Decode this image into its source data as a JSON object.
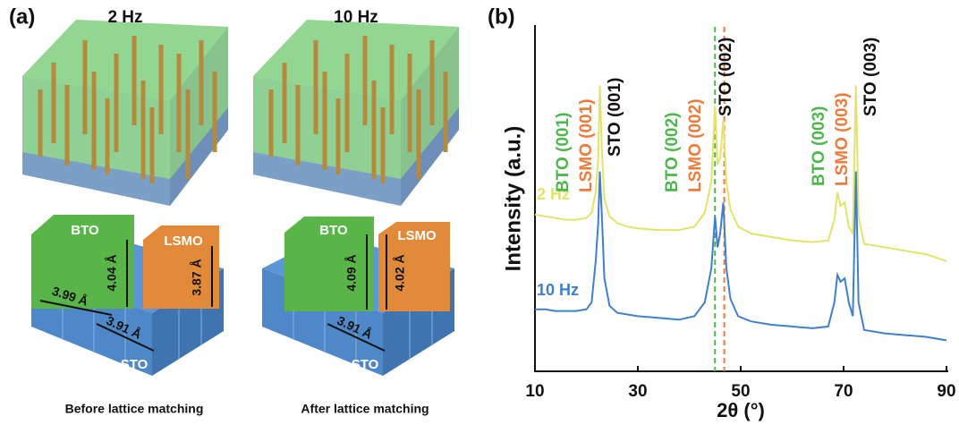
{
  "panel_a": {
    "label": "(a)",
    "samples": [
      {
        "title": "2 Hz",
        "bto": "BTO",
        "lsmo": "LSMO",
        "bto_height": "4.04 Å",
        "lsmo_height": "3.87 Å",
        "bto_width": "3.99 Å",
        "sto_width": "3.91 Å",
        "substrate": "STO",
        "caption": "Before lattice matching"
      },
      {
        "title": "10 Hz",
        "bto": "BTO",
        "lsmo": "LSMO",
        "bto_height": "4.09 Å",
        "lsmo_height": "4.02 Å",
        "sto_width": "3.91 Å",
        "substrate": "STO",
        "caption": "After lattice matching"
      }
    ]
  },
  "chart_data": {
    "type": "line",
    "panel_label": "(b)",
    "y_label": "Intensity (a.u.)",
    "x_label": "2θ (°)",
    "x": [
      10,
      12,
      14,
      16,
      18,
      20,
      21,
      21.8,
      22.3,
      22.6,
      23,
      23.5,
      24.5,
      26,
      28,
      30,
      34,
      38,
      41,
      43,
      44.3,
      45.0,
      45.5,
      46.0,
      46.6,
      47.2,
      48,
      49.5,
      52,
      56,
      60,
      64,
      67,
      68.2,
      68.8,
      69.4,
      70.2,
      71,
      71.8,
      72.4,
      72.9,
      74,
      78,
      82,
      86,
      90
    ],
    "series": [
      {
        "name": "2 Hz",
        "color": "#e3e36a",
        "values": [
          45.5,
          45,
          44.5,
          44,
          44,
          44.5,
          46,
          52,
          62,
          83,
          64,
          50,
          45,
          43,
          42,
          41.5,
          41,
          41,
          42,
          46,
          55,
          77,
          60,
          62,
          73,
          55,
          47,
          42,
          40,
          39,
          38,
          37.5,
          38,
          44,
          52,
          48,
          49,
          42,
          40,
          83,
          45,
          37,
          36,
          35,
          34,
          32
        ]
      },
      {
        "name": "10 Hz",
        "color": "#3f7fcf",
        "values": [
          18,
          18,
          17.5,
          17.5,
          17.5,
          18,
          20,
          32,
          43,
          58,
          45,
          27,
          19,
          17,
          16.5,
          16,
          15.5,
          15,
          16,
          20,
          30,
          45,
          36,
          40,
          49,
          30,
          21,
          16,
          14.5,
          13.5,
          13,
          12.5,
          13,
          20,
          28,
          26,
          27,
          20,
          16,
          58,
          20,
          12,
          11,
          10.5,
          10,
          9
        ]
      }
    ],
    "xlim": [
      10,
      90
    ],
    "xticks": [
      10,
      30,
      50,
      70,
      90
    ],
    "ylim": [
      0,
      100
    ],
    "reference_lines": [
      {
        "x": 45.0,
        "color": "#4cb84c"
      },
      {
        "x": 46.8,
        "color": "#f07a3a"
      }
    ],
    "annotations": [
      {
        "text": "BTO (001)",
        "color": "#4cb84c"
      },
      {
        "text": "LSMO (001)",
        "color": "#f07a3a"
      },
      {
        "text": "STO (001)",
        "color": "#111111"
      },
      {
        "text": "BTO (002)",
        "color": "#4cb84c"
      },
      {
        "text": "LSMO (002)",
        "color": "#f07a3a"
      },
      {
        "text": "STO (002)",
        "color": "#111111"
      },
      {
        "text": "BTO (003)",
        "color": "#4cb84c"
      },
      {
        "text": "LSMO (003)",
        "color": "#f07a3a"
      },
      {
        "text": "STO (003)",
        "color": "#111111"
      }
    ]
  }
}
